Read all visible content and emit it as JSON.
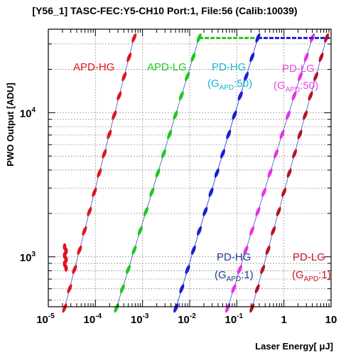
{
  "chart_data": {
    "type": "scatter",
    "title": "[Y56_1] TASC-FEC:Y5-CH10 Port:1, File:56 (Calib:10039)",
    "xlabel": "Laser Energy[ μJ]",
    "ylabel": "PWO Output [ADU]",
    "xscale": "log",
    "yscale": "log",
    "xlim": [
      1e-05,
      10
    ],
    "ylim": [
      450,
      38000
    ],
    "grid": true,
    "x_ticks": [
      {
        "base": "10",
        "exp": "-5",
        "value": 1e-05
      },
      {
        "base": "10",
        "exp": "-4",
        "value": 0.0001
      },
      {
        "base": "10",
        "exp": "-3",
        "value": 0.001
      },
      {
        "base": "10",
        "exp": "-2",
        "value": 0.01
      },
      {
        "base": "10",
        "exp": "-1",
        "value": 0.1
      },
      {
        "base": "1",
        "exp": "",
        "value": 1
      },
      {
        "base": "10",
        "exp": "",
        "value": 10
      }
    ],
    "y_ticks": [
      {
        "base": "10",
        "exp": "3",
        "value": 1000
      },
      {
        "base": "10",
        "exp": "4",
        "value": 10000
      }
    ],
    "saturation_level": 33000,
    "series": [
      {
        "name": "APD-HG",
        "color": "#e0141e",
        "x_start": 2.22e-05,
        "x_end": 0.00066,
        "sat_end": 0.0007
      },
      {
        "name": "APD-LG",
        "color": "#1ec81e",
        "x_start": 0.00028,
        "x_end": 0.0158,
        "sat_end": 0.25
      },
      {
        "name": "PD-HG (G_APD:50)",
        "color": "#19c8e6",
        "x_start": 0.0051,
        "x_end": 0.28,
        "sat_end": 0.3
      },
      {
        "name": "PD-LG (G_APD:50)",
        "color": "#e632e6",
        "x_start": 0.064,
        "x_end": 4.0,
        "sat_end": 4.0
      },
      {
        "name": "PD-HG (G_APD:1)",
        "color": "#1e1ed2",
        "x_start": 0.0051,
        "x_end": 0.28,
        "sat_end": 9.5
      },
      {
        "name": "PD-LG (G_APD:1)",
        "color": "#b41428",
        "x_start": 0.21,
        "x_end": 8.0,
        "sat_end": 8.0
      }
    ],
    "annotations": [
      {
        "main": "APD-HG",
        "sub": "",
        "tail": "",
        "color": "#e0141e"
      },
      {
        "main": "APD-LG",
        "sub": "",
        "tail": "",
        "color": "#1ec81e"
      },
      {
        "main": "PD-HG",
        "sub": "",
        "tail": "",
        "color": "#19b4d2"
      },
      {
        "main": "(G",
        "sub": "APD",
        "tail": ":50)",
        "color": "#19b4d2"
      },
      {
        "main": "PD-LG",
        "sub": "",
        "tail": "",
        "color": "#e646e6"
      },
      {
        "main": "(G",
        "sub": "APD",
        "tail": ":50)",
        "color": "#e646e6"
      },
      {
        "main": "PD-HG",
        "sub": "",
        "tail": "",
        "color": "#1e3c8c"
      },
      {
        "main": "(G",
        "sub": "APD",
        "tail": ":1)",
        "color": "#1e3c8c"
      },
      {
        "main": "PD-LG",
        "sub": "",
        "tail": "",
        "color": "#c81428"
      },
      {
        "main": "(G",
        "sub": "APD",
        "tail": ":1)",
        "color": "#c81428"
      }
    ]
  }
}
